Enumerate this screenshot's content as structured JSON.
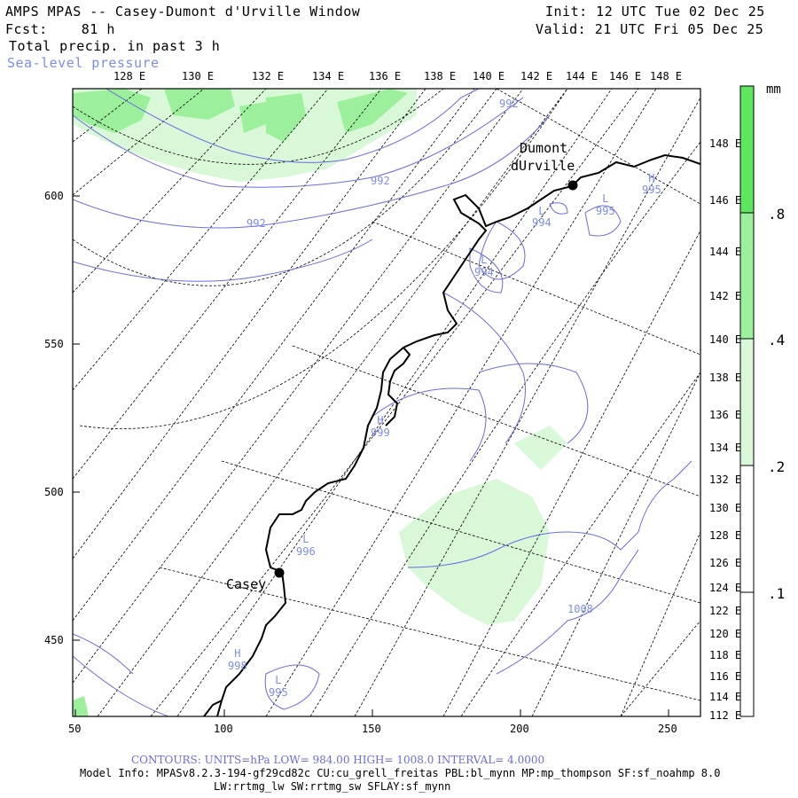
{
  "header": {
    "title": "AMPS MPAS -- Casey-Dumont d'Urville Window",
    "fcst_label": "Fcst:",
    "fcst_value": "81 h",
    "field1": "Total precip. in past 3 h",
    "field2": "Sea-level pressure",
    "init": "Init: 12 UTC Tue 02 Dec 25",
    "valid": "Valid: 21 UTC Fri 05 Dec 25"
  },
  "top_lon_labels": [
    "128 E",
    "130 E",
    "132 E",
    "134 E",
    "136 E",
    "138 E",
    "140 E",
    "142 E",
    "144 E",
    "146 E",
    "148 E"
  ],
  "right_lon_labels": [
    "148 E",
    "146 E",
    "144 E",
    "142 E",
    "140 E",
    "138 E",
    "136 E",
    "134 E",
    "132 E",
    "130 E",
    "128 E",
    "126 E",
    "124 E",
    "122 E",
    "120 E",
    "118 E",
    "116 E",
    "114 E",
    "112 E"
  ],
  "left_axis": [
    "600",
    "550",
    "500",
    "450"
  ],
  "bottom_axis": [
    "50",
    "100",
    "150",
    "200",
    "250"
  ],
  "colorbar": {
    "units": "mm",
    "levels": [
      ".8",
      ".4",
      ".2",
      ".1"
    ],
    "colors": [
      "#5ee65e",
      "#9cf09c",
      "#d8f8d8",
      "#ffffff"
    ]
  },
  "places": [
    {
      "name": "Dumont",
      "name2": "dUrville"
    },
    {
      "name": "Casey"
    }
  ],
  "pressure_labels": [
    {
      "type": "",
      "value": "992"
    },
    {
      "type": "",
      "value": "992"
    },
    {
      "type": "",
      "value": "992"
    },
    {
      "type": "L",
      "value": "994"
    },
    {
      "type": "L",
      "value": "994"
    },
    {
      "type": "L",
      "value": "995"
    },
    {
      "type": "H",
      "value": "995"
    },
    {
      "type": "H",
      "value": "999"
    },
    {
      "type": "L",
      "value": "996"
    },
    {
      "type": "",
      "value": "1008"
    },
    {
      "type": "H",
      "value": "998"
    },
    {
      "type": "L",
      "value": "995"
    }
  ],
  "footer": {
    "contours": "CONTOURS:  UNITS=hPa  LOW=  984.00       HIGH=  1008.0      INTERVAL=   4.0000",
    "model_info": "Model Info: MPASv8.2.3-194-gf29cd82c CU:cu_grell_freitas PBL:bl_mynn MP:mp_thompson SF:sf_noahmp 8.0",
    "model_info2": "LW:rrtmg_lw SW:rrtmg_sw SFLAY:sf_mynn"
  }
}
